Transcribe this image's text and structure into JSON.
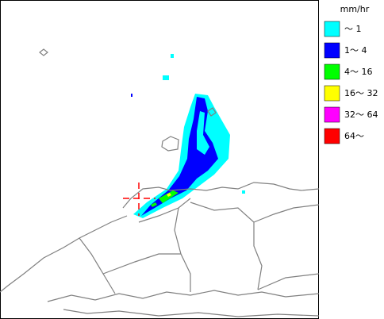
{
  "legend": {
    "unit": "mm/hr",
    "items": [
      {
        "label": "～ 1",
        "color": "#00ffff"
      },
      {
        "label": "1～ 4",
        "color": "#0000ff"
      },
      {
        "label": "4～ 16",
        "color": "#00ff00"
      },
      {
        "label": "16～ 32",
        "color": "#ffff00"
      },
      {
        "label": "32～ 64",
        "color": "#ff00ff"
      },
      {
        "label": "64～",
        "color": "#ff0000"
      }
    ]
  }
}
